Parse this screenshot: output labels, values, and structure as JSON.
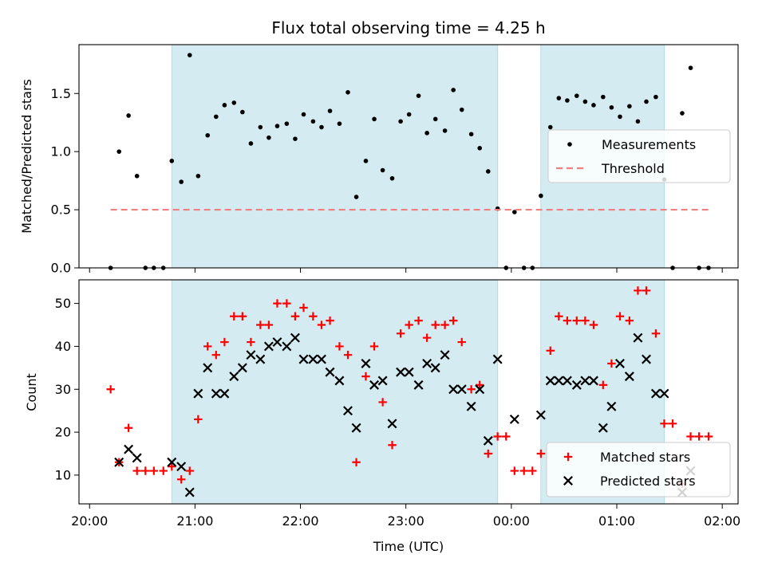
{
  "chart_data": {
    "title": "Flux total observing time = 4.25 h",
    "xlabel": "Time (UTC)",
    "x_unit": "hour",
    "x_ticks": [
      20,
      21,
      22,
      23,
      24,
      25,
      26
    ],
    "x_tick_labels": [
      "20:00",
      "21:00",
      "22:00",
      "23:00",
      "00:00",
      "01:00",
      "02:00"
    ],
    "xlim": [
      19.9,
      26.15
    ],
    "shaded_spans": [
      [
        20.78,
        23.87
      ],
      [
        24.28,
        25.45
      ]
    ],
    "shade_color": "#d4ebf2",
    "panels": [
      {
        "type": "scatter",
        "ylabel": "Matched/Predicted stars",
        "ylim": [
          0,
          1.92
        ],
        "y_ticks": [
          0.0,
          0.5,
          1.0,
          1.5
        ],
        "y_tick_labels": [
          "0.0",
          "0.5",
          "1.0",
          "1.5"
        ],
        "legend": "right",
        "series": [
          {
            "name": "Measurements",
            "marker": "dot",
            "color": "#000000",
            "points": [
              [
                20.2,
                0.0
              ],
              [
                20.28,
                1.0
              ],
              [
                20.37,
                1.31
              ],
              [
                20.45,
                0.79
              ],
              [
                20.53,
                0.0
              ],
              [
                20.61,
                0.0
              ],
              [
                20.7,
                0.0
              ],
              [
                20.78,
                0.92
              ],
              [
                20.87,
                0.74
              ],
              [
                20.95,
                1.83
              ],
              [
                21.03,
                0.79
              ],
              [
                21.12,
                1.14
              ],
              [
                21.2,
                1.3
              ],
              [
                21.28,
                1.4
              ],
              [
                21.37,
                1.42
              ],
              [
                21.45,
                1.34
              ],
              [
                21.53,
                1.07
              ],
              [
                21.62,
                1.21
              ],
              [
                21.7,
                1.12
              ],
              [
                21.78,
                1.22
              ],
              [
                21.87,
                1.24
              ],
              [
                21.95,
                1.11
              ],
              [
                22.03,
                1.32
              ],
              [
                22.12,
                1.26
              ],
              [
                22.2,
                1.21
              ],
              [
                22.28,
                1.35
              ],
              [
                22.37,
                1.24
              ],
              [
                22.45,
                1.51
              ],
              [
                22.53,
                0.61
              ],
              [
                22.62,
                0.92
              ],
              [
                22.7,
                1.28
              ],
              [
                22.78,
                0.84
              ],
              [
                22.87,
                0.77
              ],
              [
                22.95,
                1.26
              ],
              [
                23.03,
                1.32
              ],
              [
                23.12,
                1.48
              ],
              [
                23.2,
                1.16
              ],
              [
                23.28,
                1.28
              ],
              [
                23.37,
                1.18
              ],
              [
                23.45,
                1.53
              ],
              [
                23.53,
                1.36
              ],
              [
                23.62,
                1.15
              ],
              [
                23.7,
                1.03
              ],
              [
                23.78,
                0.83
              ],
              [
                23.87,
                0.51
              ],
              [
                23.95,
                0.0
              ],
              [
                24.03,
                0.48
              ],
              [
                24.12,
                0.0
              ],
              [
                24.2,
                0.0
              ],
              [
                24.28,
                0.62
              ],
              [
                24.37,
                1.21
              ],
              [
                24.45,
                1.46
              ],
              [
                24.53,
                1.44
              ],
              [
                24.62,
                1.48
              ],
              [
                24.7,
                1.43
              ],
              [
                24.78,
                1.4
              ],
              [
                24.87,
                1.47
              ],
              [
                24.95,
                1.38
              ],
              [
                25.03,
                1.3
              ],
              [
                25.12,
                1.39
              ],
              [
                25.2,
                1.26
              ],
              [
                25.28,
                1.43
              ],
              [
                25.37,
                1.47
              ],
              [
                25.45,
                0.76
              ],
              [
                25.53,
                0.0
              ],
              [
                25.62,
                1.33
              ],
              [
                25.7,
                1.72
              ],
              [
                25.78,
                0.0
              ],
              [
                25.87,
                0.0
              ]
            ]
          },
          {
            "name": "Threshold",
            "marker": "dashed-line",
            "color": "#f08080",
            "points": [
              [
                20.2,
                0.5
              ],
              [
                25.87,
                0.5
              ]
            ]
          }
        ]
      },
      {
        "type": "scatter",
        "ylabel": "Count",
        "ylim": [
          3.3,
          55.5
        ],
        "y_ticks": [
          10,
          20,
          30,
          40,
          50
        ],
        "y_tick_labels": [
          "10",
          "20",
          "30",
          "40",
          "50"
        ],
        "legend": "lower right",
        "series": [
          {
            "name": "Matched stars",
            "marker": "plus",
            "color": "#ff0000",
            "points": [
              [
                20.2,
                30
              ],
              [
                20.28,
                13
              ],
              [
                20.37,
                21
              ],
              [
                20.45,
                11
              ],
              [
                20.53,
                11
              ],
              [
                20.61,
                11
              ],
              [
                20.7,
                11
              ],
              [
                20.78,
                12
              ],
              [
                20.87,
                9
              ],
              [
                20.95,
                11
              ],
              [
                21.03,
                23
              ],
              [
                21.12,
                40
              ],
              [
                21.2,
                38
              ],
              [
                21.28,
                41
              ],
              [
                21.37,
                47
              ],
              [
                21.45,
                47
              ],
              [
                21.53,
                41
              ],
              [
                21.62,
                45
              ],
              [
                21.7,
                45
              ],
              [
                21.78,
                50
              ],
              [
                21.87,
                50
              ],
              [
                21.95,
                47
              ],
              [
                22.03,
                49
              ],
              [
                22.12,
                47
              ],
              [
                22.2,
                45
              ],
              [
                22.28,
                46
              ],
              [
                22.37,
                40
              ],
              [
                22.45,
                38
              ],
              [
                22.53,
                13
              ],
              [
                22.62,
                33
              ],
              [
                22.7,
                40
              ],
              [
                22.78,
                27
              ],
              [
                22.87,
                17
              ],
              [
                22.95,
                43
              ],
              [
                23.03,
                45
              ],
              [
                23.12,
                46
              ],
              [
                23.2,
                42
              ],
              [
                23.28,
                45
              ],
              [
                23.37,
                45
              ],
              [
                23.45,
                46
              ],
              [
                23.53,
                41
              ],
              [
                23.62,
                30
              ],
              [
                23.7,
                31
              ],
              [
                23.78,
                15
              ],
              [
                23.87,
                19
              ],
              [
                23.95,
                19
              ],
              [
                24.03,
                11
              ],
              [
                24.12,
                11
              ],
              [
                24.2,
                11
              ],
              [
                24.28,
                15
              ],
              [
                24.37,
                39
              ],
              [
                24.45,
                47
              ],
              [
                24.53,
                46
              ],
              [
                24.62,
                46
              ],
              [
                24.7,
                46
              ],
              [
                24.78,
                45
              ],
              [
                24.87,
                31
              ],
              [
                24.95,
                36
              ],
              [
                25.03,
                47
              ],
              [
                25.12,
                46
              ],
              [
                25.2,
                53
              ],
              [
                25.28,
                53
              ],
              [
                25.37,
                43
              ],
              [
                25.45,
                22
              ],
              [
                25.53,
                22
              ],
              [
                25.62,
                8
              ],
              [
                25.7,
                19
              ],
              [
                25.78,
                19
              ],
              [
                25.87,
                19
              ]
            ]
          },
          {
            "name": "Predicted stars",
            "marker": "x",
            "color": "#000000",
            "points": [
              [
                20.28,
                13
              ],
              [
                20.37,
                16
              ],
              [
                20.45,
                14
              ],
              [
                20.78,
                13
              ],
              [
                20.87,
                12
              ],
              [
                20.95,
                6
              ],
              [
                21.03,
                29
              ],
              [
                21.12,
                35
              ],
              [
                21.2,
                29
              ],
              [
                21.28,
                29
              ],
              [
                21.37,
                33
              ],
              [
                21.45,
                35
              ],
              [
                21.53,
                38
              ],
              [
                21.62,
                37
              ],
              [
                21.7,
                40
              ],
              [
                21.78,
                41
              ],
              [
                21.87,
                40
              ],
              [
                21.95,
                42
              ],
              [
                22.03,
                37
              ],
              [
                22.12,
                37
              ],
              [
                22.2,
                37
              ],
              [
                22.28,
                34
              ],
              [
                22.37,
                32
              ],
              [
                22.45,
                25
              ],
              [
                22.53,
                21
              ],
              [
                22.62,
                36
              ],
              [
                22.7,
                31
              ],
              [
                22.78,
                32
              ],
              [
                22.87,
                22
              ],
              [
                22.95,
                34
              ],
              [
                23.03,
                34
              ],
              [
                23.12,
                31
              ],
              [
                23.2,
                36
              ],
              [
                23.28,
                35
              ],
              [
                23.37,
                38
              ],
              [
                23.45,
                30
              ],
              [
                23.53,
                30
              ],
              [
                23.62,
                26
              ],
              [
                23.7,
                30
              ],
              [
                23.78,
                18
              ],
              [
                23.87,
                37
              ],
              [
                24.03,
                23
              ],
              [
                24.28,
                24
              ],
              [
                24.37,
                32
              ],
              [
                24.45,
                32
              ],
              [
                24.53,
                32
              ],
              [
                24.62,
                31
              ],
              [
                24.7,
                32
              ],
              [
                24.78,
                32
              ],
              [
                24.87,
                21
              ],
              [
                24.95,
                26
              ],
              [
                25.03,
                36
              ],
              [
                25.12,
                33
              ],
              [
                25.2,
                42
              ],
              [
                25.28,
                37
              ],
              [
                25.37,
                29
              ],
              [
                25.45,
                29
              ],
              [
                25.62,
                6
              ],
              [
                25.7,
                11
              ]
            ]
          }
        ]
      }
    ]
  }
}
